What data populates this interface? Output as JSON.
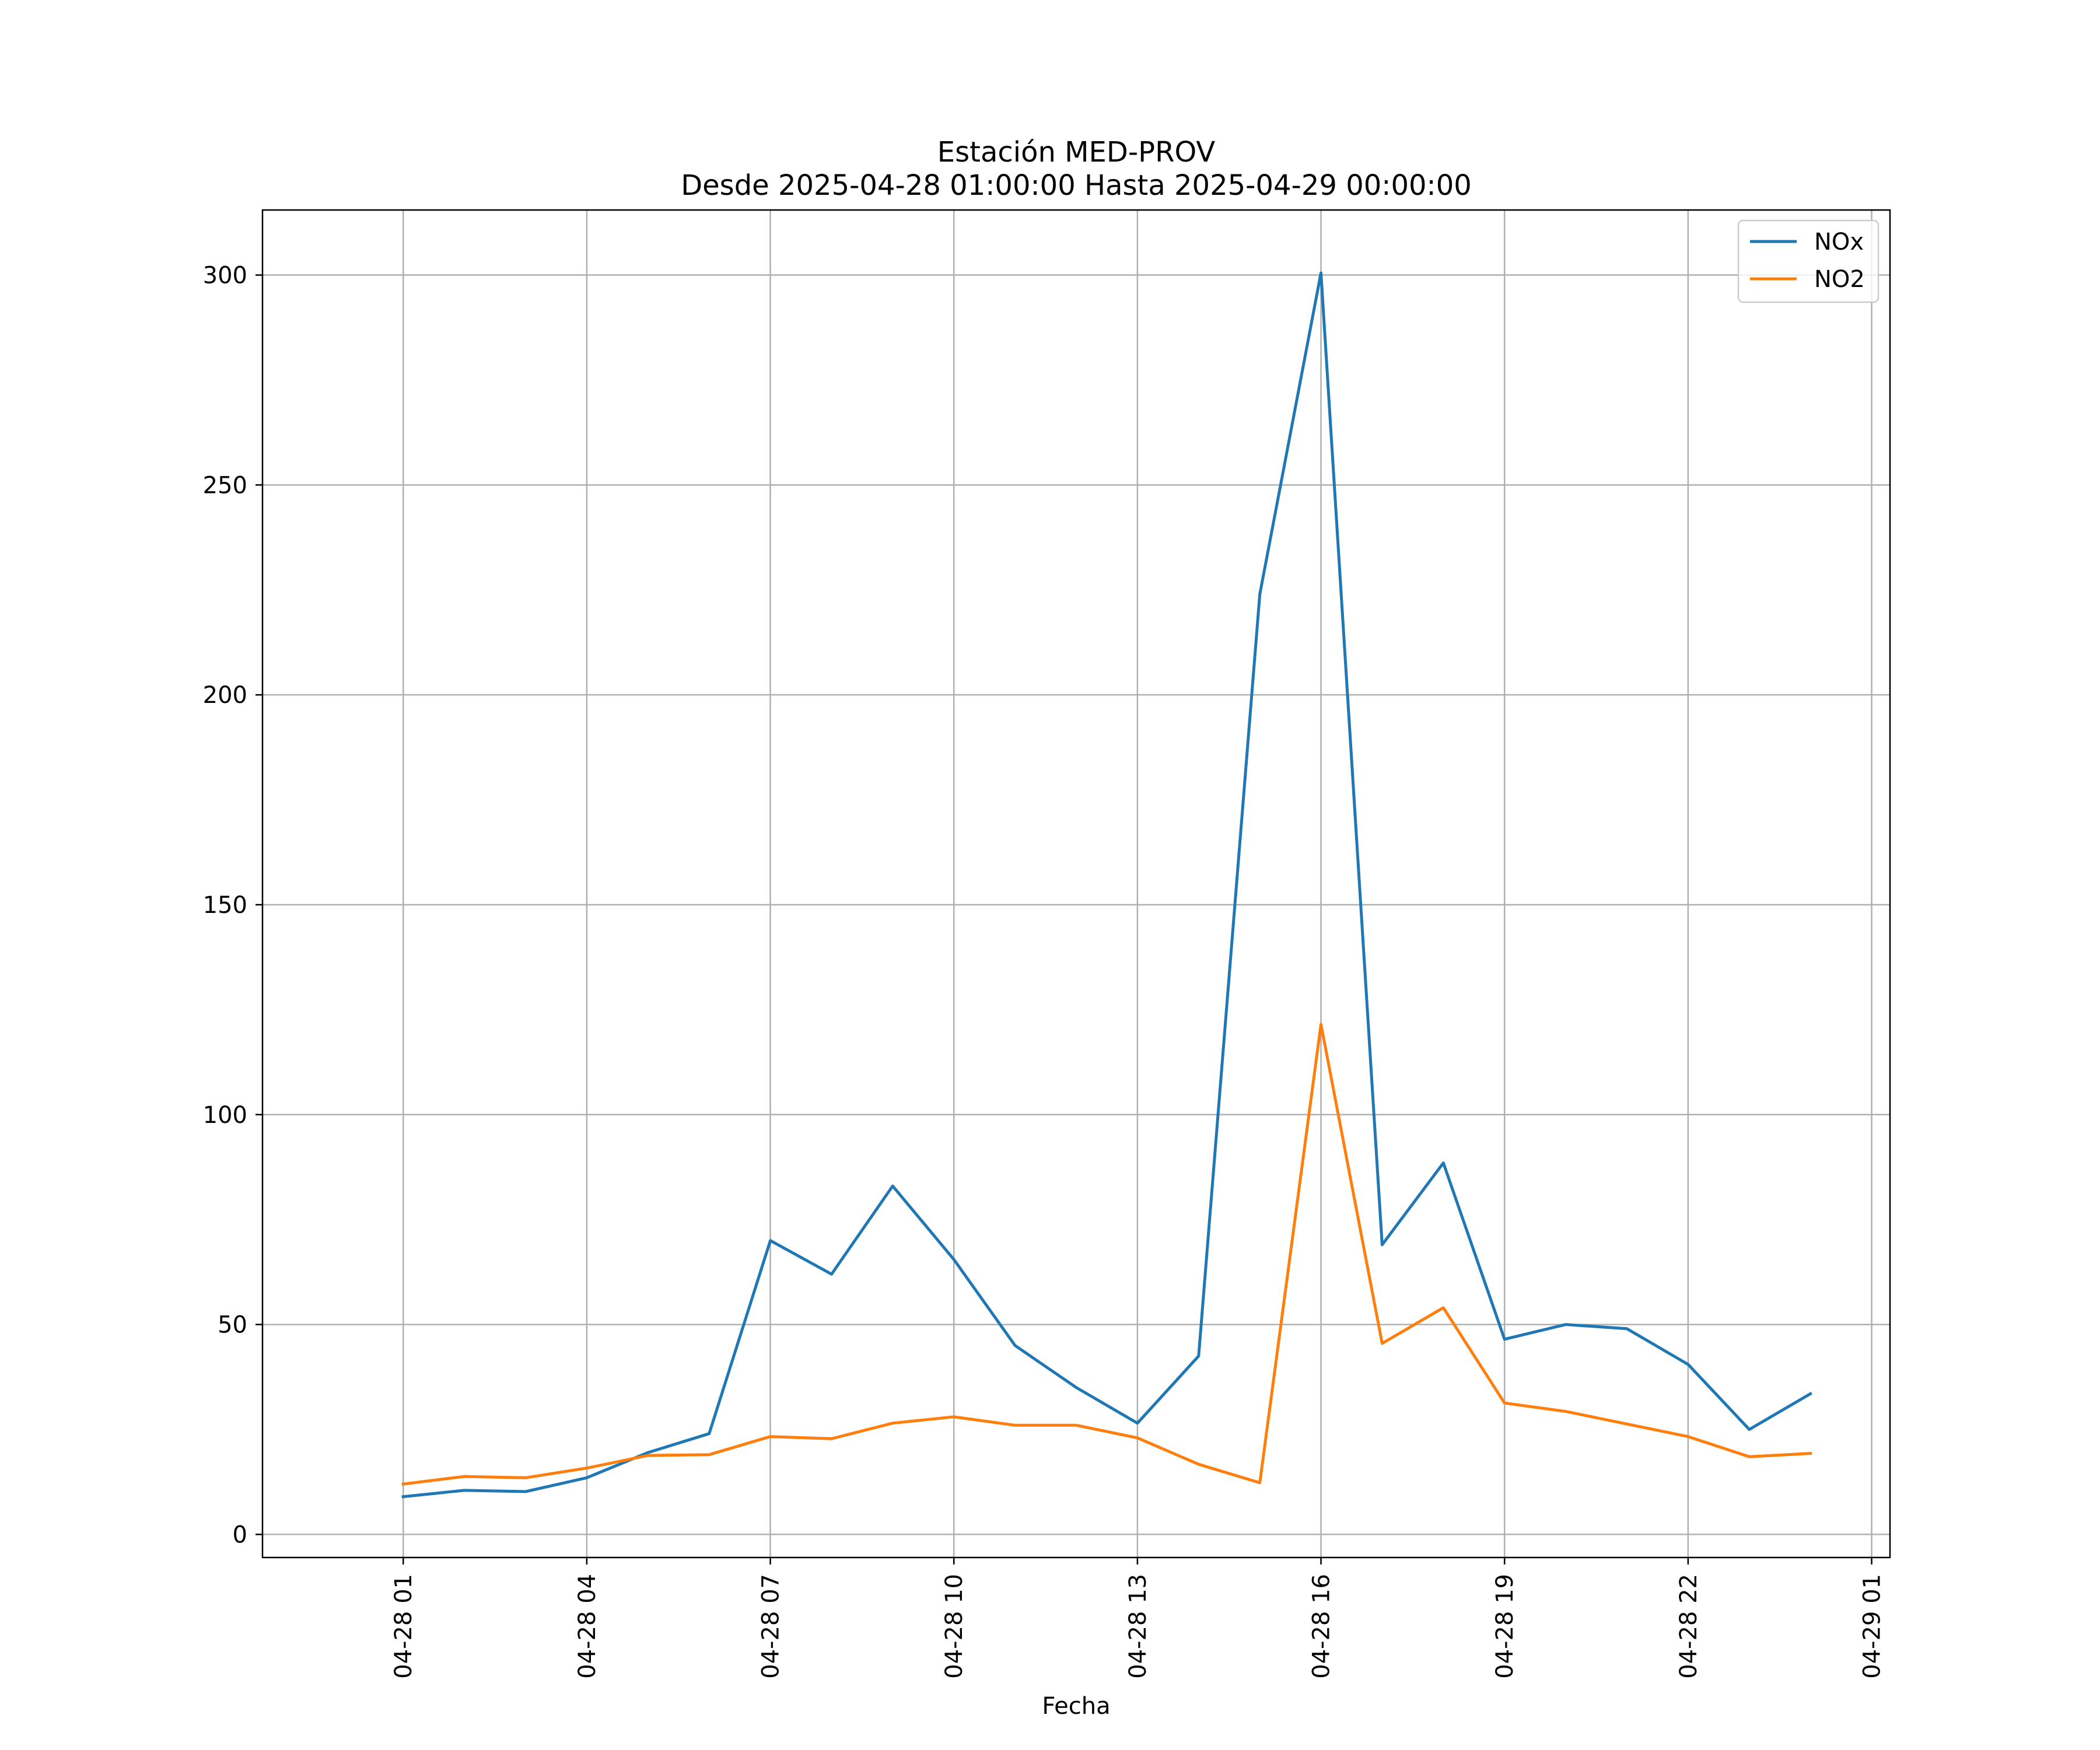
{
  "chart_data": {
    "type": "line",
    "title": "Estación MED-PROV",
    "subtitle": "Desde 2025-04-28 01:00:00 Hasta 2025-04-29 00:00:00",
    "xlabel": "Fecha",
    "ylabel": "",
    "x": [
      "2025-04-28 01:00",
      "2025-04-28 02:00",
      "2025-04-28 03:00",
      "2025-04-28 04:00",
      "2025-04-28 05:00",
      "2025-04-28 06:00",
      "2025-04-28 07:00",
      "2025-04-28 08:00",
      "2025-04-28 09:00",
      "2025-04-28 10:00",
      "2025-04-28 11:00",
      "2025-04-28 12:00",
      "2025-04-28 13:00",
      "2025-04-28 14:00",
      "2025-04-28 15:00",
      "2025-04-28 16:00",
      "2025-04-28 17:00",
      "2025-04-28 18:00",
      "2025-04-28 19:00",
      "2025-04-28 20:00",
      "2025-04-28 21:00",
      "2025-04-28 22:00",
      "2025-04-28 23:00",
      "2025-04-29 00:00"
    ],
    "series": [
      {
        "name": "NOx",
        "color": "#1f77b4",
        "values": [
          9.0,
          10.5,
          10.2,
          13.5,
          19.5,
          24.0,
          70.0,
          62.0,
          83.0,
          65.5,
          45.0,
          35.0,
          26.5,
          42.5,
          224.0,
          300.5,
          69.0,
          88.5,
          46.5,
          50.0,
          49.0,
          40.5,
          25.0,
          33.5
        ]
      },
      {
        "name": "NO2",
        "color": "#ff7f0e",
        "values": [
          12.0,
          13.8,
          13.5,
          15.8,
          18.8,
          19.0,
          23.3,
          22.8,
          26.5,
          28.0,
          26.0,
          26.0,
          23.0,
          16.7,
          12.3,
          121.5,
          45.5,
          54.0,
          31.3,
          29.3,
          26.3,
          23.3,
          18.5,
          19.3
        ]
      }
    ],
    "xticks": [
      "04-28 01",
      "04-28 04",
      "04-28 07",
      "04-28 10",
      "04-28 13",
      "04-28 16",
      "04-28 19",
      "04-28 22",
      "04-29 01"
    ],
    "yticks": [
      "0",
      "50",
      "100",
      "150",
      "200",
      "250",
      "300"
    ],
    "xlim": [
      "2025-04-27 22:42",
      "2025-04-29 01:18"
    ],
    "ylim": [
      -5.5,
      315.5
    ],
    "grid": true,
    "legend": "top-right"
  }
}
